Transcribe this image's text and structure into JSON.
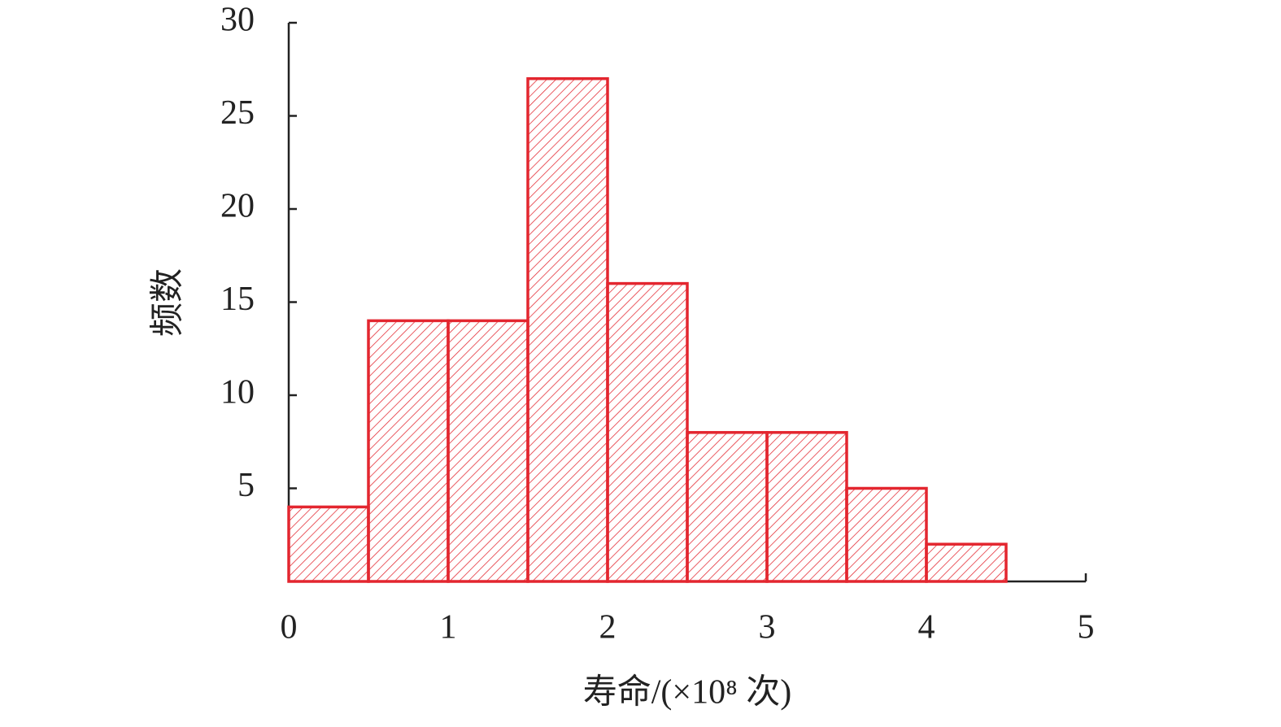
{
  "chart_data": {
    "type": "histogram",
    "xlabel": "寿命/(×10⁸ 次)",
    "ylabel": "频数",
    "bins": [
      0,
      0.5,
      1,
      1.5,
      2,
      2.5,
      3,
      3.5,
      4,
      4.5
    ],
    "values": [
      4,
      14,
      14,
      27,
      16,
      8,
      8,
      5,
      2
    ],
    "color": "#e3262f",
    "xlim": [
      0,
      5
    ],
    "xticks": [
      0,
      1,
      2,
      3,
      4,
      5
    ],
    "ylim": [
      0,
      30
    ],
    "yticks": [
      5,
      10,
      15,
      20,
      25,
      30
    ]
  }
}
